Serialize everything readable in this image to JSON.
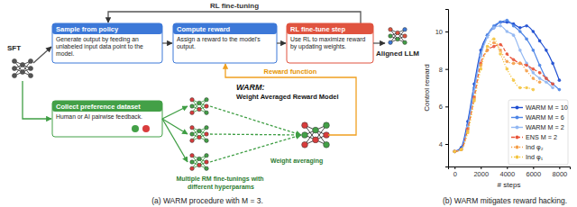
{
  "diagram": {
    "loop_label": "RL fine-tuning",
    "start": "SFT",
    "boxes": [
      {
        "header": "Sample from policy",
        "body": "Generate output by feeding an unlabeled input data point to the model."
      },
      {
        "header": "Compute reward",
        "body": "Assign a reward to the model's output."
      },
      {
        "header": "RL fine-tune step",
        "body": "Use RL to maximize reward by updating weights."
      },
      {
        "header": "Collect preference dataset",
        "body": "Human or AI pairwise feedback."
      }
    ],
    "output": "Aligned LLM",
    "reward_label": "Reward function",
    "warm_title": "WARM:",
    "warm_subtitle": "Weight Averaged Reward Model",
    "finetune_label": "Multiple RM fine-tunings with different hyperparams",
    "averaging_label": "Weight averaging",
    "captions": [
      "(a) WARM procedure with M = 3.",
      "(b) WARM mitigates reward hacking."
    ]
  },
  "chart_data": {
    "type": "line",
    "x_label": "# steps",
    "y_label": "Control reward",
    "x": [
      0,
      500,
      1000,
      1500,
      2000,
      2500,
      3000,
      3500,
      4000,
      4500,
      5000,
      5500,
      6000,
      6500,
      7000,
      7500,
      8000
    ],
    "xlim": [
      -500,
      8800
    ],
    "xticks": [
      0,
      2000,
      4000,
      6000,
      8000
    ],
    "ylim": [
      2.8,
      11.2
    ],
    "yticks": [
      4,
      6,
      8,
      10
    ],
    "grid": false,
    "legend": "lower right",
    "series": [
      {
        "name": "WARM M = 10",
        "color": "#1f4fd1",
        "line_style": "solid",
        "marker": "circle",
        "values": [
          3.6,
          3.8,
          5.2,
          7.2,
          9.0,
          9.8,
          10.2,
          10.5,
          10.5,
          10.4,
          10.2,
          10.3,
          10.0,
          9.5,
          9.0,
          8.3,
          7.4
        ]
      },
      {
        "name": "WARM M = 6",
        "color": "#4f86e6",
        "line_style": "solid",
        "marker": "circle",
        "values": [
          3.6,
          3.7,
          5.0,
          7.0,
          8.8,
          9.8,
          10.3,
          10.5,
          10.6,
          10.3,
          10.0,
          9.6,
          9.0,
          8.2,
          7.5,
          7.2,
          6.9
        ]
      },
      {
        "name": "WARM M = 2",
        "color": "#93b8f2",
        "line_style": "solid",
        "marker": "circle",
        "values": [
          3.6,
          3.7,
          4.9,
          6.8,
          8.7,
          9.7,
          10.2,
          10.3,
          10.0,
          9.8,
          9.0,
          8.3,
          7.8,
          7.5,
          7.3,
          7.0,
          null
        ]
      },
      {
        "name": "ENS M = 2",
        "color": "#e8553a",
        "line_style": "dashed",
        "marker": "circle",
        "values": [
          3.6,
          3.7,
          4.8,
          6.5,
          8.3,
          9.0,
          9.2,
          9.3,
          8.8,
          8.5,
          8.3,
          8.2,
          8.0,
          7.8,
          7.5,
          7.2,
          null
        ]
      },
      {
        "name": "Ind φ₂",
        "color": "#f5a04a",
        "line_style": "dotted",
        "marker": "circle",
        "values": [
          3.6,
          3.7,
          4.7,
          6.4,
          8.2,
          9.0,
          9.4,
          9.0,
          8.4,
          8.3,
          8.3,
          7.9,
          7.5,
          7.3,
          null,
          null,
          null
        ]
      },
      {
        "name": "Ind φ₁",
        "color": "#f4c542",
        "line_style": "dotted",
        "marker": "circle",
        "values": [
          3.6,
          3.7,
          4.6,
          6.3,
          8.0,
          9.2,
          9.6,
          8.8,
          8.0,
          7.4,
          7.0,
          7.0,
          6.9,
          null,
          null,
          null,
          null
        ]
      }
    ]
  }
}
